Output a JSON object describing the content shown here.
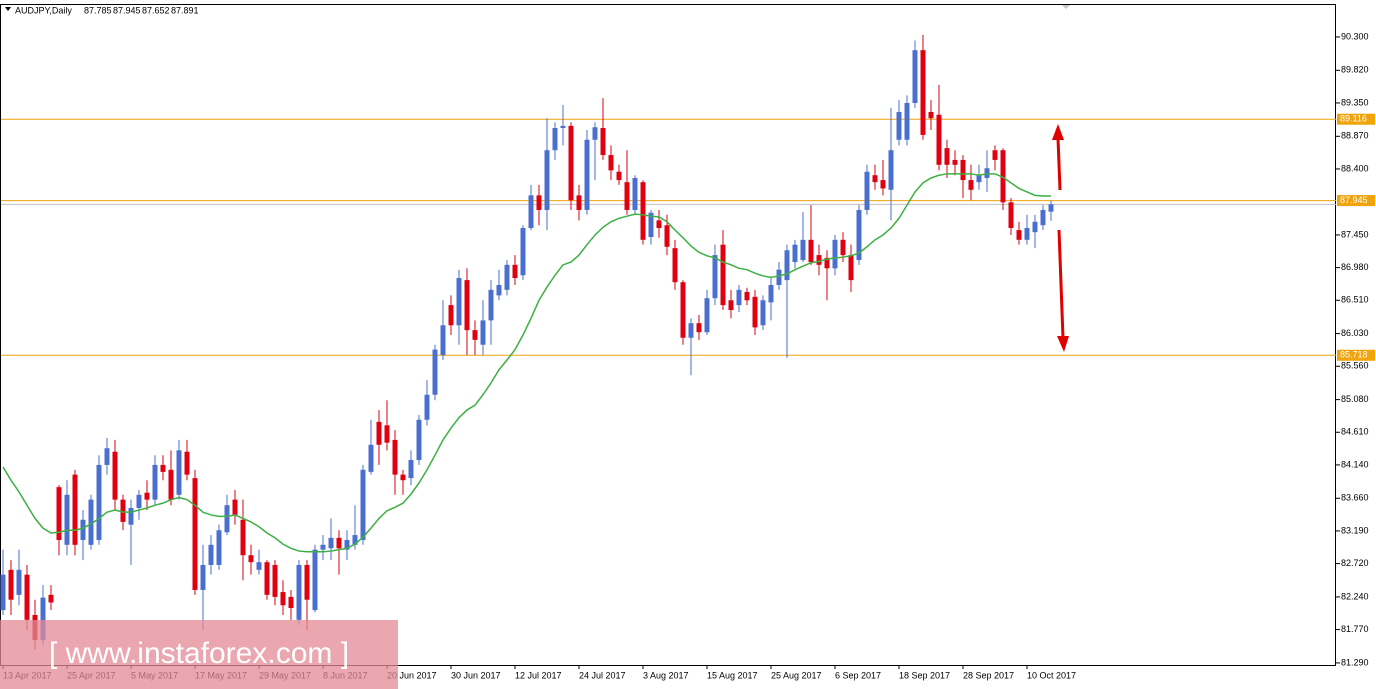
{
  "chart_data": {
    "type": "candlestick",
    "title": "AUDJPY,Daily",
    "watermark": "[ www.instaforex.com ]",
    "categories": [
      "13 Apr 2017",
      null,
      null,
      null,
      null,
      null,
      null,
      null,
      "25 Apr 2017",
      null,
      null,
      null,
      null,
      null,
      null,
      null,
      "5 May 2017",
      null,
      null,
      null,
      null,
      null,
      null,
      null,
      "17 May 2017",
      null,
      null,
      null,
      null,
      null,
      null,
      null,
      "29 May 2017",
      null,
      null,
      null,
      null,
      null,
      null,
      null,
      "8 Jun 2017",
      null,
      null,
      null,
      null,
      null,
      null,
      null,
      "20 Jun 2017",
      null,
      null,
      null,
      null,
      null,
      null,
      null,
      "30 Jun 2017",
      null,
      null,
      null,
      null,
      null,
      null,
      null,
      "12 Jul 2017",
      null,
      null,
      null,
      null,
      null,
      null,
      null,
      "24 Jul 2017",
      null,
      null,
      null,
      null,
      null,
      null,
      null,
      "3 Aug 2017",
      null,
      null,
      null,
      null,
      null,
      null,
      null,
      "15 Aug 2017",
      null,
      null,
      null,
      null,
      null,
      null,
      null,
      "25 Aug 2017",
      null,
      null,
      null,
      null,
      null,
      null,
      null,
      "6 Sep 2017",
      null,
      null,
      null,
      null,
      null,
      null,
      null,
      "18 Sep 2017",
      null,
      null,
      null,
      null,
      null,
      null,
      null,
      "28 Sep 2017",
      null,
      null,
      null,
      null,
      null,
      null,
      null,
      "10 Oct 2017",
      null,
      null,
      null
    ],
    "open": [
      82.05,
      82.63,
      82.27,
      82.56,
      81.98,
      81.62,
      82.27,
      83.82,
      82.99,
      84.0,
      83.06,
      82.99,
      83.06,
      84.14,
      84.33,
      83.64,
      83.28,
      83.52,
      83.74,
      83.64,
      84.14,
      84.07,
      83.71,
      84.33,
      83.95,
      82.34,
      82.7,
      82.7,
      83.17,
      83.64,
      83.35,
      82.84,
      82.63,
      82.74,
      82.7,
      82.31,
      82.24,
      81.91,
      82.7,
      82.05,
      82.92,
      82.94,
      83.09,
      82.92,
      82.99,
      83.06,
      84.04,
      84.76,
      84.71,
      84.5,
      84.0,
      83.95,
      84.21,
      84.79,
      85.15,
      85.72,
      86.44,
      86.15,
      86.8,
      86.08,
      85.87,
      86.22,
      86.58,
      86.66,
      87.02,
      86.87,
      87.55,
      88.02,
      87.81,
      88.67,
      88.99,
      89.02,
      88.02,
      87.81,
      88.82,
      88.99,
      88.6,
      88.36,
      88.21,
      87.81,
      88.21,
      87.42,
      87.66,
      87.59,
      87.26,
      86.77,
      85.97,
      86.18,
      86.05,
      86.54,
      87.31,
      86.51,
      86.44,
      86.63,
      86.56,
      86.15,
      86.48,
      86.73,
      86.8,
      87.06,
      87.09,
      87.38,
      87.16,
      87.12,
      86.97,
      87.38,
      87.16,
      87.09,
      87.81,
      88.31,
      88.24,
      88.1,
      88.82,
      88.82,
      89.35,
      90.11,
      89.22,
      89.18,
      88.7,
      88.53,
      88.53,
      88.24,
      88.21,
      88.27,
      88.67,
      88.67,
      87.92,
      87.52,
      87.38,
      87.49,
      87.59,
      87.785
    ],
    "high": [
      82.92,
      82.77,
      82.92,
      82.7,
      82.2,
      82.41,
      82.41,
      83.85,
      83.92,
      84.07,
      83.49,
      83.71,
      84.28,
      84.53,
      84.5,
      83.71,
      83.64,
      83.78,
      83.92,
      84.28,
      84.28,
      84.35,
      84.5,
      84.5,
      84.07,
      82.99,
      83.13,
      83.28,
      83.71,
      83.78,
      83.64,
      82.99,
      82.92,
      82.77,
      82.77,
      82.48,
      82.34,
      82.77,
      82.77,
      82.99,
      83.13,
      83.37,
      83.2,
      83.2,
      83.56,
      84.14,
      84.79,
      84.93,
      85.07,
      84.64,
      84.07,
      84.35,
      84.86,
      85.36,
      85.87,
      86.51,
      86.58,
      86.95,
      86.97,
      86.22,
      86.51,
      86.8,
      86.95,
      87.09,
      87.16,
      87.59,
      88.17,
      88.17,
      89.13,
      89.07,
      89.32,
      89.07,
      88.17,
      88.96,
      89.07,
      89.42,
      88.74,
      88.46,
      88.67,
      88.31,
      88.24,
      87.81,
      87.81,
      87.74,
      87.38,
      86.8,
      86.25,
      86.3,
      86.66,
      87.31,
      87.52,
      86.66,
      86.73,
      86.69,
      86.66,
      86.58,
      86.83,
      87.06,
      87.31,
      87.38,
      87.78,
      87.88,
      87.31,
      87.23,
      87.45,
      87.49,
      87.31,
      87.88,
      88.46,
      88.46,
      88.53,
      89.28,
      89.39,
      89.46,
      90.25,
      90.33,
      89.39,
      89.61,
      88.82,
      88.67,
      88.6,
      88.46,
      88.46,
      88.67,
      88.74,
      88.7,
      87.98,
      87.64,
      87.74,
      87.74,
      87.88,
      87.945
    ],
    "low": [
      81.98,
      81.98,
      82.12,
      81.76,
      81.48,
      81.55,
      82.05,
      82.84,
      82.84,
      82.84,
      82.77,
      82.92,
      82.99,
      84.0,
      83.49,
      83.2,
      82.7,
      83.35,
      83.49,
      83.56,
      83.92,
      83.56,
      83.64,
      83.92,
      82.27,
      81.76,
      82.56,
      82.63,
      83.13,
      83.28,
      82.48,
      82.56,
      82.56,
      82.2,
      82.12,
      81.98,
      81.91,
      81.84,
      81.76,
      82.02,
      82.77,
      82.77,
      82.56,
      82.77,
      82.92,
      82.99,
      84.0,
      84.14,
      84.35,
      83.71,
      83.71,
      83.85,
      84.14,
      84.71,
      85.07,
      85.65,
      86.01,
      85.87,
      85.72,
      85.72,
      85.72,
      85.87,
      86.51,
      86.58,
      86.73,
      86.8,
      87.52,
      87.59,
      87.52,
      88.53,
      88.74,
      87.81,
      87.66,
      87.74,
      88.24,
      88.53,
      88.24,
      88.17,
      87.74,
      87.74,
      87.31,
      87.31,
      87.41,
      87.16,
      86.66,
      85.87,
      85.43,
      85.94,
      86.01,
      86.44,
      86.37,
      86.25,
      86.34,
      86.44,
      86.01,
      86.08,
      86.22,
      86.66,
      85.68,
      86.97,
      87.06,
      87.02,
      86.87,
      86.51,
      86.87,
      87.06,
      86.63,
      87.02,
      87.74,
      88.1,
      88.02,
      87.66,
      88.74,
      88.74,
      89.28,
      88.82,
      88.96,
      88.38,
      88.27,
      88.31,
      87.98,
      87.95,
      88.1,
      88.07,
      88.38,
      87.81,
      87.45,
      87.31,
      87.31,
      87.26,
      87.52,
      87.652
    ],
    "close": [
      82.56,
      82.2,
      82.63,
      81.91,
      81.62,
      82.23,
      82.16,
      83.06,
      83.71,
      82.99,
      83.35,
      83.64,
      84.14,
      84.38,
      83.64,
      83.32,
      83.52,
      83.71,
      83.64,
      84.14,
      84.04,
      83.64,
      84.35,
      84.0,
      82.34,
      82.7,
      82.99,
      83.2,
      83.56,
      83.42,
      82.84,
      82.74,
      82.74,
      82.27,
      82.24,
      82.12,
      82.08,
      82.7,
      82.2,
      82.92,
      82.99,
      83.09,
      82.94,
      83.06,
      83.13,
      84.07,
      84.43,
      84.43,
      84.46,
      84.0,
      83.92,
      84.21,
      84.79,
      85.15,
      85.8,
      86.15,
      86.15,
      86.83,
      86.08,
      85.94,
      86.22,
      86.66,
      86.73,
      87.02,
      86.83,
      87.55,
      88.02,
      87.81,
      88.67,
      88.99,
      89.02,
      87.95,
      87.81,
      88.82,
      89.0,
      88.6,
      88.38,
      88.24,
      87.81,
      88.27,
      87.38,
      87.77,
      87.55,
      87.28,
      86.77,
      85.97,
      86.18,
      86.05,
      86.54,
      87.16,
      86.44,
      86.37,
      86.66,
      86.51,
      86.12,
      86.51,
      86.73,
      86.95,
      87.23,
      87.31,
      87.38,
      87.06,
      87.02,
      86.97,
      87.38,
      87.16,
      86.8,
      87.81,
      88.36,
      88.21,
      88.12,
      88.67,
      89.22,
      89.35,
      90.11,
      88.89,
      89.13,
      88.46,
      88.46,
      88.46,
      88.24,
      88.1,
      88.31,
      88.41,
      88.53,
      87.92,
      87.55,
      87.38,
      87.55,
      87.64,
      87.81,
      87.891
    ],
    "up_color": "#4a6fd0",
    "down_color": "#e0000f",
    "moving_average": {
      "color": "#3cb043",
      "values": [
        84.11,
        83.92,
        83.75,
        83.56,
        83.37,
        83.23,
        83.16,
        83.17,
        83.2,
        83.2,
        83.23,
        83.29,
        83.37,
        83.46,
        83.49,
        83.46,
        83.46,
        83.49,
        83.52,
        83.56,
        83.59,
        83.64,
        83.67,
        83.64,
        83.56,
        83.46,
        83.42,
        83.4,
        83.4,
        83.42,
        83.37,
        83.32,
        83.25,
        83.16,
        83.09,
        83.0,
        82.94,
        82.9,
        82.89,
        82.89,
        82.89,
        82.9,
        82.92,
        82.94,
        83.0,
        83.1,
        83.23,
        83.37,
        83.48,
        83.53,
        83.59,
        83.72,
        83.88,
        84.07,
        84.28,
        84.5,
        84.67,
        84.82,
        84.93,
        85.0,
        85.15,
        85.32,
        85.51,
        85.65,
        85.8,
        86.01,
        86.25,
        86.51,
        86.7,
        86.87,
        87.02,
        87.06,
        87.16,
        87.31,
        87.45,
        87.56,
        87.64,
        87.69,
        87.72,
        87.75,
        87.74,
        87.72,
        87.71,
        87.64,
        87.52,
        87.41,
        87.29,
        87.2,
        87.15,
        87.12,
        87.06,
        87.02,
        86.97,
        86.95,
        86.9,
        86.86,
        86.84,
        86.86,
        86.89,
        86.95,
        87.0,
        87.05,
        87.07,
        87.1,
        87.12,
        87.13,
        87.15,
        87.19,
        87.28,
        87.38,
        87.45,
        87.55,
        87.69,
        87.88,
        88.07,
        88.2,
        88.27,
        88.31,
        88.33,
        88.33,
        88.33,
        88.33,
        88.31,
        88.33,
        88.33,
        88.28,
        88.2,
        88.12,
        88.07,
        88.02,
        88.01,
        88.01
      ]
    },
    "levels": [
      89.116,
      87.945,
      85.718
    ],
    "level_color": "#f0a30a",
    "price_line_color": "#c0c0c0",
    "ylim": [
      81.26,
      90.76
    ],
    "yticks": [
      {
        "value": 90.3,
        "label": "90.300"
      },
      {
        "value": 89.82,
        "label": "89.820"
      },
      {
        "value": 89.35,
        "label": "89.350"
      },
      {
        "value": 88.87,
        "label": "88.870"
      },
      {
        "value": 88.4,
        "label": "88.400"
      },
      {
        "value": 87.45,
        "label": "87.450"
      },
      {
        "value": 86.98,
        "label": "86.980"
      },
      {
        "value": 86.51,
        "label": "86.510"
      },
      {
        "value": 86.03,
        "label": "86.030"
      },
      {
        "value": 85.56,
        "label": "85.560"
      },
      {
        "value": 85.08,
        "label": "85.080"
      },
      {
        "value": 84.61,
        "label": "84.610"
      },
      {
        "value": 84.14,
        "label": "84.140"
      },
      {
        "value": 83.66,
        "label": "83.660"
      },
      {
        "value": 83.19,
        "label": "83.190"
      },
      {
        "value": 82.72,
        "label": "82.720"
      },
      {
        "value": 82.24,
        "label": "82.240"
      },
      {
        "value": 81.77,
        "label": "81.770"
      },
      {
        "value": 81.29,
        "label": "81.290"
      }
    ]
  }
}
